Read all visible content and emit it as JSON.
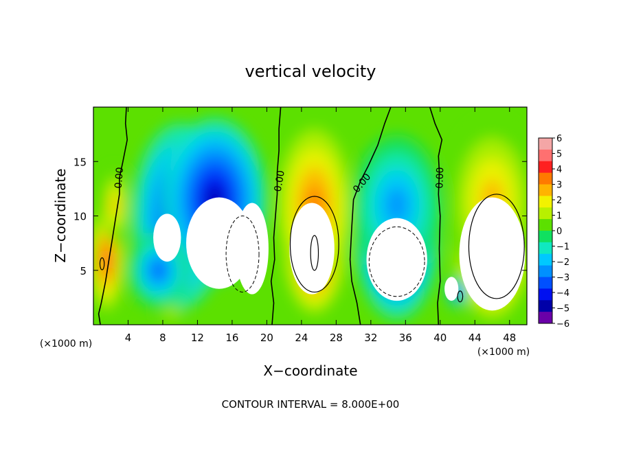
{
  "chart_data": {
    "type": "heatmap",
    "title": "vertical velocity",
    "xlabel": "X−coordinate",
    "ylabel": "Z−coordinate",
    "x_unit": "(×1000 m)",
    "z_unit": "(×1000 m)",
    "xlim": [
      0,
      50
    ],
    "ylim": [
      0,
      20
    ],
    "x_ticks": [
      4,
      8,
      12,
      16,
      20,
      24,
      28,
      32,
      36,
      40,
      44,
      48
    ],
    "y_ticks": [
      5,
      10,
      15
    ],
    "colorbar": {
      "ticks": [
        6,
        5,
        4,
        3,
        2,
        1,
        0,
        -1,
        -2,
        -3,
        -4,
        -5,
        -6
      ],
      "tick_labels": [
        "6",
        "5",
        "4",
        "3",
        "2",
        "1",
        "0",
        "−1",
        "−2",
        "−3",
        "−4",
        "−5",
        "−6"
      ],
      "colors": [
        "#f4a6a6",
        "#ff7070",
        "#ff2020",
        "#ff7a00",
        "#ffb400",
        "#f2f200",
        "#b8f000",
        "#5ce000",
        "#10e060",
        "#10e8c0",
        "#00c8ff",
        "#0090ff",
        "#0050ff",
        "#0010f0",
        "#0000a8",
        "#6a00a8"
      ]
    },
    "contour_labels": [
      {
        "text": "0.00",
        "x": 3.0,
        "z": 13.5,
        "rotate": -85
      },
      {
        "text": "0.00",
        "x": 21.5,
        "z": 13.2,
        "rotate": -80
      },
      {
        "text": "0.00",
        "x": 31.0,
        "z": 13.0,
        "rotate": -50
      },
      {
        "text": "0.00",
        "x": 40.0,
        "z": 13.5,
        "rotate": -88
      }
    ],
    "zero_contours": [
      [
        [
          3.8,
          20
        ],
        [
          3.7,
          18.5
        ],
        [
          3.9,
          17
        ],
        [
          3.4,
          15
        ],
        [
          3.0,
          13.5
        ],
        [
          3.0,
          12
        ],
        [
          2.6,
          10
        ],
        [
          2.2,
          8
        ],
        [
          1.8,
          6
        ],
        [
          1.4,
          4
        ],
        [
          0.9,
          2
        ],
        [
          0.6,
          1
        ],
        [
          0.8,
          0
        ]
      ],
      [
        [
          21.6,
          20
        ],
        [
          21.4,
          18
        ],
        [
          21.4,
          16
        ],
        [
          21.2,
          14
        ],
        [
          21.2,
          12
        ],
        [
          21.0,
          10
        ],
        [
          20.8,
          8
        ],
        [
          20.9,
          6
        ],
        [
          20.5,
          4
        ],
        [
          20.8,
          2
        ],
        [
          20.6,
          0
        ]
      ],
      [
        [
          34.3,
          20
        ],
        [
          33.6,
          18.5
        ],
        [
          32.8,
          16.5
        ],
        [
          31.7,
          14.6
        ],
        [
          30.8,
          13.2
        ],
        [
          30.0,
          11.5
        ],
        [
          29.8,
          9
        ],
        [
          29.6,
          6
        ],
        [
          29.8,
          4
        ],
        [
          30.4,
          2
        ],
        [
          30.8,
          0
        ]
      ],
      [
        [
          38.8,
          20
        ],
        [
          39.4,
          18.5
        ],
        [
          40.2,
          17
        ],
        [
          39.8,
          15.5
        ],
        [
          39.9,
          14
        ],
        [
          39.8,
          12
        ],
        [
          40.0,
          10
        ],
        [
          39.9,
          7
        ],
        [
          40.0,
          4
        ],
        [
          39.7,
          2
        ],
        [
          39.8,
          0
        ]
      ]
    ],
    "cells": [
      {
        "x": 1.5,
        "z": 6,
        "rx": 2.2,
        "rz": 5.5,
        "v": 4.5
      },
      {
        "x": 2.5,
        "z": 11,
        "rx": 1.6,
        "rz": 3.5,
        "v": 3
      },
      {
        "x": 10,
        "z": 10,
        "rx": 5.5,
        "rz": 8.5,
        "v": -4
      },
      {
        "x": 14,
        "z": 11.5,
        "rx": 6,
        "rz": 7.5,
        "v": -4.8
      },
      {
        "x": 7.5,
        "z": 5,
        "rx": 3.5,
        "rz": 3.5,
        "v": -3.5
      },
      {
        "x": 25.5,
        "z": 7.5,
        "rx": 3.6,
        "rz": 6.5,
        "v": 6
      },
      {
        "x": 25.5,
        "z": 11,
        "rx": 4.2,
        "rz": 7,
        "v": 3.2
      },
      {
        "x": 35,
        "z": 8,
        "rx": 4.8,
        "rz": 7.5,
        "v": -4.5
      },
      {
        "x": 35,
        "z": 11,
        "rx": 5.2,
        "rz": 6.5,
        "v": -2.8
      },
      {
        "x": 46,
        "z": 8,
        "rx": 4.5,
        "rz": 7.5,
        "v": 6
      },
      {
        "x": 46,
        "z": 11.5,
        "rx": 5.2,
        "rz": 7.5,
        "v": 3
      },
      {
        "x": 42,
        "z": 3,
        "rx": 1.2,
        "rz": 1.4,
        "v": -3
      },
      {
        "x": 9,
        "z": 1,
        "rx": 1.5,
        "rz": 1,
        "v": 1
      }
    ],
    "saturated_regions": [
      {
        "x": 8.5,
        "z": 8,
        "rx": 1.6,
        "rz": 2.2,
        "sign": -1
      },
      {
        "x": 14.5,
        "z": 7.5,
        "rx": 3.8,
        "rz": 4.2,
        "sign": -1
      },
      {
        "x": 18.3,
        "z": 7,
        "rx": 1.9,
        "rz": 4.2,
        "sign": -1
      },
      {
        "x": 25.2,
        "z": 7,
        "rx": 2.6,
        "rz": 4.2,
        "sign": 1
      },
      {
        "x": 35,
        "z": 6,
        "rx": 3.5,
        "rz": 3.8,
        "sign": -1
      },
      {
        "x": 46,
        "z": 6.5,
        "rx": 3.8,
        "rz": 5.2,
        "sign": 1
      },
      {
        "x": 41.3,
        "z": 3.3,
        "rx": 0.8,
        "rz": 1.1,
        "sign": 1
      }
    ],
    "dashed_contours": [
      {
        "x": 17.2,
        "z": 6.5,
        "rx": 1.9,
        "rz": 3.5
      },
      {
        "x": 35,
        "z": 5.8,
        "rx": 3.2,
        "rz": 3.2
      }
    ],
    "solid_contours": [
      {
        "x": 25.5,
        "z": 7.4,
        "rx": 2.8,
        "rz": 4.4
      },
      {
        "x": 25.5,
        "z": 6.6,
        "rx": 0.45,
        "rz": 1.6
      },
      {
        "x": 46.5,
        "z": 7.2,
        "rx": 3.2,
        "rz": 4.8
      },
      {
        "x": 1.0,
        "z": 5.6,
        "rx": 0.25,
        "rz": 0.55
      },
      {
        "x": 42.3,
        "z": 2.6,
        "rx": 0.3,
        "rz": 0.5
      }
    ]
  },
  "footer": "CONTOUR INTERVAL = 8.000E+00"
}
